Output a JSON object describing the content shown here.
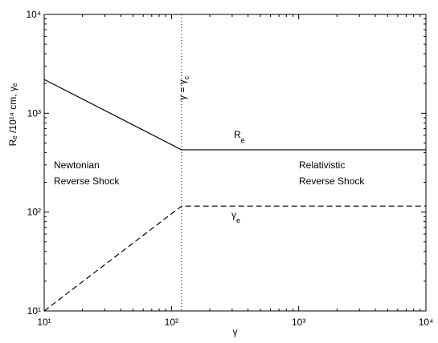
{
  "chart_data": {
    "type": "line",
    "xlabel": "γ",
    "ylabel": "Rₑ /10¹⁴ cm,  γₑ",
    "xscale": "log",
    "yscale": "log",
    "xlim": [
      10,
      10000
    ],
    "ylim": [
      10,
      10000
    ],
    "xticks": [
      {
        "value": 10,
        "label": "10¹"
      },
      {
        "value": 100,
        "label": "10²"
      },
      {
        "value": 1000,
        "label": "10³"
      },
      {
        "value": 10000,
        "label": "10⁴"
      }
    ],
    "yticks": [
      {
        "value": 10,
        "label": "10¹"
      },
      {
        "value": 100,
        "label": "10²"
      },
      {
        "value": 1000,
        "label": "10³"
      },
      {
        "value": 10000,
        "label": "10⁴"
      }
    ],
    "series": [
      {
        "name": "Rₑ",
        "color": "#000000",
        "dash": "solid",
        "x": [
          10,
          120,
          10000
        ],
        "values": [
          2200,
          427,
          427
        ]
      },
      {
        "name": "γₑ",
        "color": "#000000",
        "dash": "dashed",
        "x": [
          10,
          120,
          10000
        ],
        "values": [
          10,
          115,
          115
        ]
      }
    ],
    "vline": {
      "x": 120,
      "dash": "dotted",
      "text": "γ = γ",
      "subscript": "c"
    },
    "annotations": [
      {
        "text": "Newtonian"
      },
      {
        "text": "Reverse Shock"
      },
      {
        "text": "Relativistic"
      },
      {
        "text": "Reverse Shock"
      },
      {
        "text": "R",
        "subscript": "e"
      },
      {
        "text": "γ",
        "subscript": "e"
      }
    ]
  }
}
